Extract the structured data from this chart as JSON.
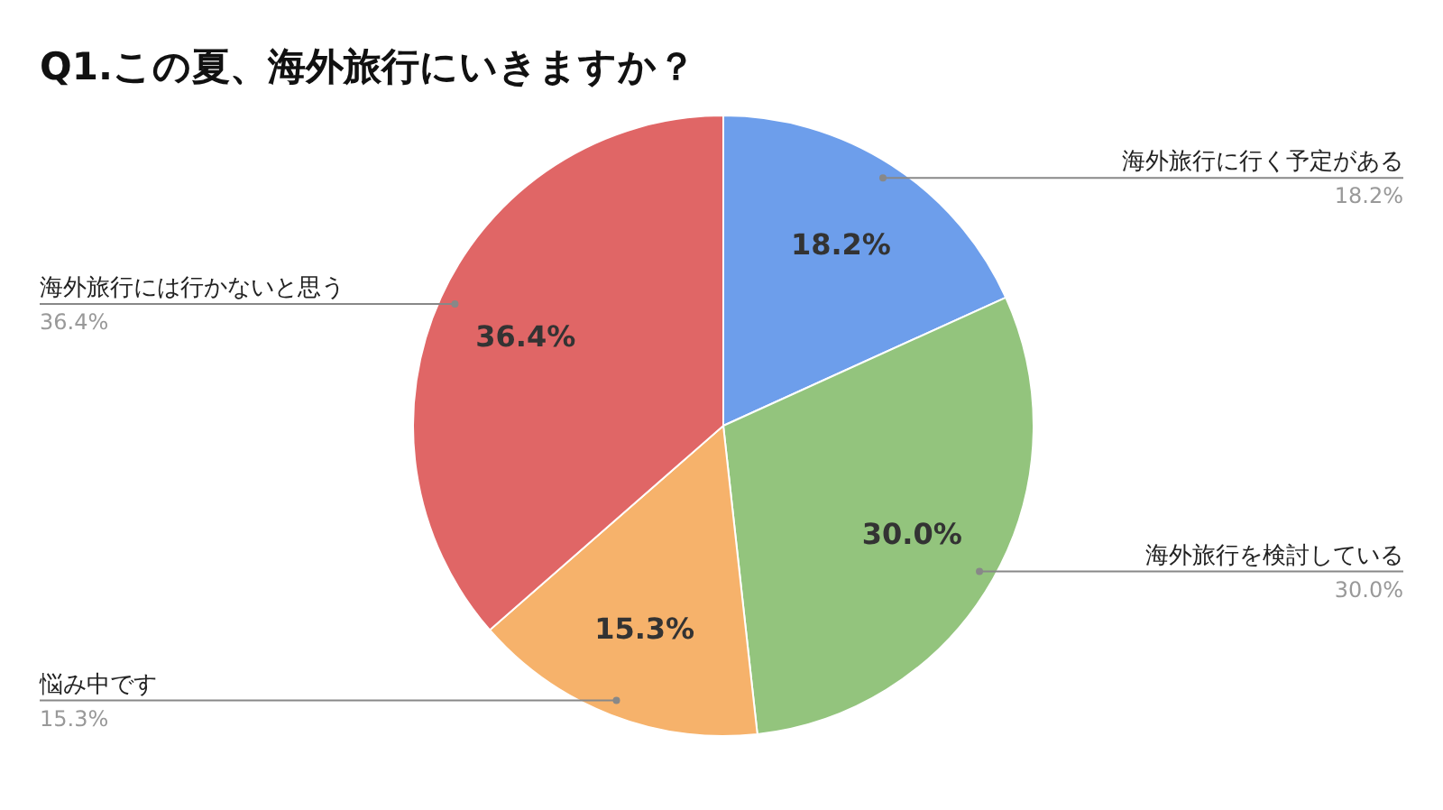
{
  "chart_data": {
    "type": "pie",
    "title": "Q1.この夏、海外旅行にいきますか？",
    "categories": [
      "海外旅行に行く予定がある",
      "海外旅行を検討している",
      "悩み中です",
      "海外旅行には行かないと思う"
    ],
    "values": [
      18.2,
      30.0,
      15.3,
      36.4
    ],
    "colors": [
      "#6d9eeb",
      "#93c47d",
      "#f6b26b",
      "#e06666"
    ],
    "value_labels": [
      "18.2%",
      "30.0%",
      "15.3%",
      "36.4%"
    ]
  }
}
